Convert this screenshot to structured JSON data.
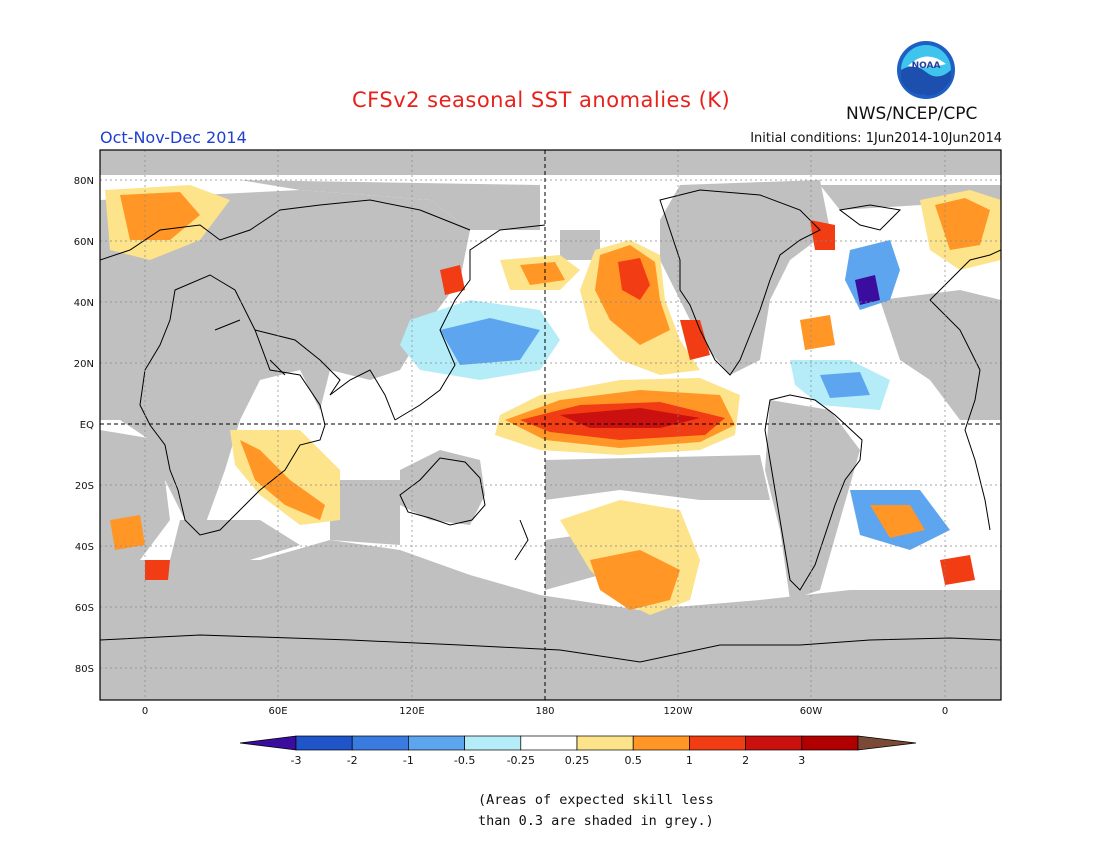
{
  "header": {
    "title": "CFSv2 seasonal SST anomalies (K)",
    "organization": "NWS/NCEP/CPC",
    "period": "Oct-Nov-Dec 2014",
    "initial_conditions": "Initial conditions: 1Jun2014-10Jun2014",
    "logo_text": "NOAA"
  },
  "map": {
    "lat_labels": [
      "80N",
      "60N",
      "40N",
      "20N",
      "EQ",
      "20S",
      "40S",
      "60S",
      "80S"
    ],
    "lon_labels": [
      "0",
      "60E",
      "120E",
      "180",
      "120W",
      "60W",
      "0"
    ],
    "mask_color": "#c0c0c0",
    "land_color": "#c0c0c0"
  },
  "legend": {
    "ticks": [
      "-3",
      "-2",
      "-1",
      "-0.5",
      "-0.25",
      "0.25",
      "0.5",
      "1",
      "2",
      "3"
    ],
    "colors": [
      "#3a0d9e",
      "#1f55c8",
      "#3a7be0",
      "#5ea5f0",
      "#b4ecf8",
      "#ffffff",
      "#fde38a",
      "#ff9626",
      "#f23c14",
      "#cb1010",
      "#b00000",
      "#7a4a36"
    ]
  },
  "note": {
    "line1": "(Areas of expected skill less",
    "line2": "than 0.3 are shaded in grey.)"
  }
}
